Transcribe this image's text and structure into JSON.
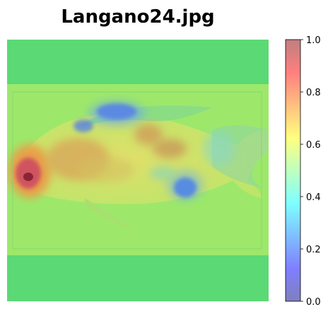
{
  "title": "Langano24.jpg",
  "chart_data": {
    "type": "heatmap",
    "title": "Langano24.jpg",
    "colormap": "jet",
    "alpha": 0.5,
    "clim": [
      0.0,
      1.0
    ],
    "colorbar": {
      "position": "right",
      "ticks": [
        0.0,
        0.2,
        0.4,
        0.6,
        0.8,
        1.0
      ],
      "tick_labels": [
        "0.0",
        "0.2",
        "0.4",
        "0.6",
        "0.8",
        "1.0"
      ]
    },
    "content": "saliency overlay on fish photograph",
    "axes_visible": false
  }
}
